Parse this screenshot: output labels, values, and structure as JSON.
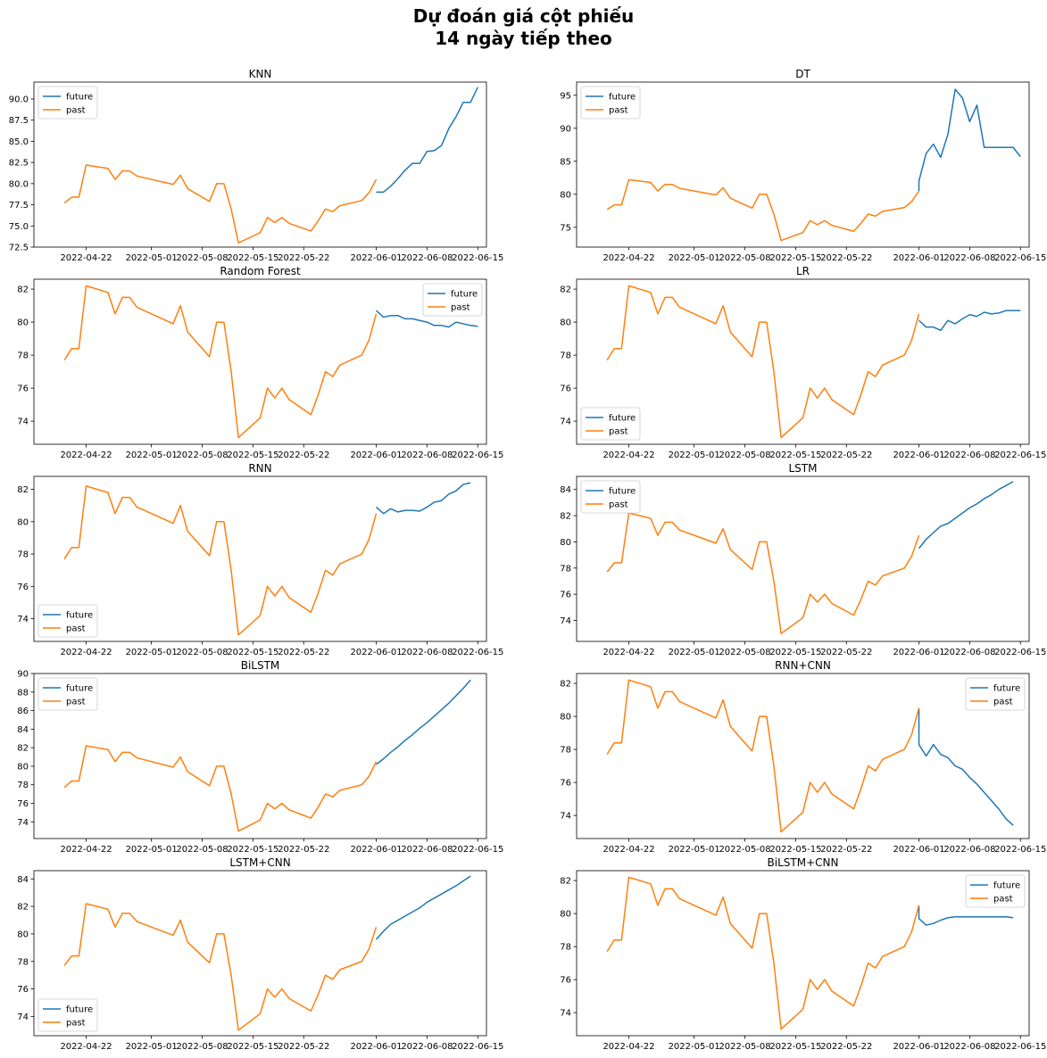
{
  "figure": {
    "title_line1": "Dự đoán giá cột phiếu",
    "title_line2": "14 ngày tiếp theo"
  },
  "legend_labels": {
    "future": "future",
    "past": "past"
  },
  "colors": {
    "future": "#1f77b4",
    "past": "#ff7f0e"
  },
  "chart_data": [
    {
      "type": "line",
      "title": "KNN",
      "xlabel": "",
      "ylabel": "",
      "xlim": [
        "2022-04-16",
        "2022-06-15"
      ],
      "ylim": [
        72.5,
        92.0
      ],
      "yticks": [
        72.5,
        75.0,
        77.5,
        80.0,
        82.5,
        85.0,
        87.5,
        90.0
      ],
      "ytick_decimals": 1,
      "xticks": [
        "2022-04-22",
        "2022-05-01",
        "2022-05-08",
        "2022-05-15",
        "2022-05-22",
        "2022-06-01",
        "2022-06-08",
        "2022-06-15"
      ],
      "legend": "upper-left",
      "future": [
        [
          "2022-06-01",
          79.0
        ],
        [
          "2022-06-02",
          79.0
        ],
        [
          "2022-06-03",
          79.7
        ],
        [
          "2022-06-04",
          80.6
        ],
        [
          "2022-06-05",
          81.6
        ],
        [
          "2022-06-06",
          82.4
        ],
        [
          "2022-06-07",
          82.4
        ],
        [
          "2022-06-08",
          83.8
        ],
        [
          "2022-06-09",
          83.9
        ],
        [
          "2022-06-10",
          84.5
        ],
        [
          "2022-06-11",
          86.5
        ],
        [
          "2022-06-12",
          87.9
        ],
        [
          "2022-06-13",
          89.6
        ],
        [
          "2022-06-14",
          89.6
        ],
        [
          "2022-06-15",
          91.4
        ]
      ]
    },
    {
      "type": "line",
      "title": "DT",
      "xlabel": "",
      "ylabel": "",
      "xlim": [
        "2022-04-16",
        "2022-06-15"
      ],
      "ylim": [
        72.0,
        97.0
      ],
      "yticks": [
        75,
        80,
        85,
        90,
        95
      ],
      "ytick_decimals": 0,
      "xticks": [
        "2022-04-22",
        "2022-05-01",
        "2022-05-08",
        "2022-05-15",
        "2022-05-22",
        "2022-06-01",
        "2022-06-08",
        "2022-06-15"
      ],
      "legend": "upper-left",
      "future": [
        [
          "2022-06-01",
          80.5
        ],
        [
          "2022-06-01",
          82.0
        ],
        [
          "2022-06-02",
          86.2
        ],
        [
          "2022-06-03",
          87.6
        ],
        [
          "2022-06-04",
          85.6
        ],
        [
          "2022-06-05",
          89.1
        ],
        [
          "2022-06-06",
          95.9
        ],
        [
          "2022-06-07",
          94.6
        ],
        [
          "2022-06-08",
          91.0
        ],
        [
          "2022-06-09",
          93.5
        ],
        [
          "2022-06-10",
          87.1
        ],
        [
          "2022-06-11",
          87.1
        ],
        [
          "2022-06-12",
          87.1
        ],
        [
          "2022-06-13",
          87.1
        ],
        [
          "2022-06-14",
          87.1
        ],
        [
          "2022-06-15",
          85.7
        ]
      ]
    },
    {
      "type": "line",
      "title": "Random Forest",
      "xlabel": "",
      "ylabel": "",
      "xlim": [
        "2022-04-16",
        "2022-06-15"
      ],
      "ylim": [
        72.6,
        82.6
      ],
      "yticks": [
        74,
        76,
        78,
        80,
        82
      ],
      "ytick_decimals": 0,
      "xticks": [
        "2022-04-22",
        "2022-05-01",
        "2022-05-08",
        "2022-05-15",
        "2022-05-22",
        "2022-06-01",
        "2022-06-08",
        "2022-06-15"
      ],
      "legend": "upper-right",
      "future": [
        [
          "2022-06-01",
          80.7
        ],
        [
          "2022-06-02",
          80.3
        ],
        [
          "2022-06-03",
          80.4
        ],
        [
          "2022-06-04",
          80.4
        ],
        [
          "2022-06-05",
          80.2
        ],
        [
          "2022-06-06",
          80.2
        ],
        [
          "2022-06-07",
          80.1
        ],
        [
          "2022-06-08",
          80.0
        ],
        [
          "2022-06-09",
          79.8
        ],
        [
          "2022-06-10",
          79.8
        ],
        [
          "2022-06-11",
          79.7
        ],
        [
          "2022-06-12",
          80.0
        ],
        [
          "2022-06-13",
          79.9
        ],
        [
          "2022-06-14",
          79.8
        ],
        [
          "2022-06-15",
          79.75
        ]
      ]
    },
    {
      "type": "line",
      "title": "LR",
      "xlabel": "",
      "ylabel": "",
      "xlim": [
        "2022-04-16",
        "2022-06-15"
      ],
      "ylim": [
        72.6,
        82.6
      ],
      "yticks": [
        74,
        76,
        78,
        80,
        82
      ],
      "ytick_decimals": 0,
      "xticks": [
        "2022-04-22",
        "2022-05-01",
        "2022-05-08",
        "2022-05-15",
        "2022-05-22",
        "2022-06-01",
        "2022-06-08",
        "2022-06-15"
      ],
      "legend": "lower-left",
      "future": [
        [
          "2022-06-01",
          80.1
        ],
        [
          "2022-06-02",
          79.7
        ],
        [
          "2022-06-03",
          79.7
        ],
        [
          "2022-06-04",
          79.5
        ],
        [
          "2022-06-05",
          80.1
        ],
        [
          "2022-06-06",
          79.9
        ],
        [
          "2022-06-07",
          80.2
        ],
        [
          "2022-06-08",
          80.45
        ],
        [
          "2022-06-09",
          80.35
        ],
        [
          "2022-06-10",
          80.6
        ],
        [
          "2022-06-11",
          80.5
        ],
        [
          "2022-06-12",
          80.55
        ],
        [
          "2022-06-13",
          80.7
        ],
        [
          "2022-06-14",
          80.7
        ],
        [
          "2022-06-15",
          80.7
        ]
      ]
    },
    {
      "type": "line",
      "title": "RNN",
      "xlabel": "",
      "ylabel": "",
      "xlim": [
        "2022-04-16",
        "2022-06-15"
      ],
      "ylim": [
        72.6,
        82.8
      ],
      "yticks": [
        74,
        76,
        78,
        80,
        82
      ],
      "ytick_decimals": 0,
      "xticks": [
        "2022-04-22",
        "2022-05-01",
        "2022-05-08",
        "2022-05-15",
        "2022-05-22",
        "2022-06-01",
        "2022-06-08",
        "2022-06-15"
      ],
      "legend": "lower-left",
      "future": [
        [
          "2022-06-01",
          80.9
        ],
        [
          "2022-06-02",
          80.5
        ],
        [
          "2022-06-03",
          80.8
        ],
        [
          "2022-06-04",
          80.6
        ],
        [
          "2022-06-05",
          80.7
        ],
        [
          "2022-06-06",
          80.7
        ],
        [
          "2022-06-07",
          80.65
        ],
        [
          "2022-06-08",
          80.9
        ],
        [
          "2022-06-09",
          81.2
        ],
        [
          "2022-06-10",
          81.3
        ],
        [
          "2022-06-11",
          81.7
        ],
        [
          "2022-06-12",
          81.9
        ],
        [
          "2022-06-13",
          82.3
        ],
        [
          "2022-06-14",
          82.4
        ]
      ]
    },
    {
      "type": "line",
      "title": "LSTM",
      "xlabel": "",
      "ylabel": "",
      "xlim": [
        "2022-04-16",
        "2022-06-15"
      ],
      "ylim": [
        72.4,
        85.0
      ],
      "yticks": [
        74,
        76,
        78,
        80,
        82,
        84
      ],
      "ytick_decimals": 0,
      "xticks": [
        "2022-04-22",
        "2022-05-01",
        "2022-05-08",
        "2022-05-15",
        "2022-05-22",
        "2022-06-01",
        "2022-06-08",
        "2022-06-15"
      ],
      "legend": "upper-left",
      "future": [
        [
          "2022-06-01",
          79.5
        ],
        [
          "2022-06-02",
          80.2
        ],
        [
          "2022-06-03",
          80.7
        ],
        [
          "2022-06-04",
          81.2
        ],
        [
          "2022-06-05",
          81.4
        ],
        [
          "2022-06-06",
          81.8
        ],
        [
          "2022-06-07",
          82.2
        ],
        [
          "2022-06-08",
          82.6
        ],
        [
          "2022-06-09",
          82.9
        ],
        [
          "2022-06-10",
          83.3
        ],
        [
          "2022-06-11",
          83.6
        ],
        [
          "2022-06-12",
          84.0
        ],
        [
          "2022-06-13",
          84.3
        ],
        [
          "2022-06-14",
          84.6
        ]
      ]
    },
    {
      "type": "line",
      "title": "BiLSTM",
      "xlabel": "",
      "ylabel": "",
      "xlim": [
        "2022-04-16",
        "2022-06-15"
      ],
      "ylim": [
        72.2,
        90.0
      ],
      "yticks": [
        74,
        76,
        78,
        80,
        82,
        84,
        86,
        88,
        90
      ],
      "ytick_decimals": 0,
      "xticks": [
        "2022-04-22",
        "2022-05-01",
        "2022-05-08",
        "2022-05-15",
        "2022-05-22",
        "2022-06-01",
        "2022-06-08",
        "2022-06-15"
      ],
      "legend": "upper-left",
      "future": [
        [
          "2022-06-01",
          80.2
        ],
        [
          "2022-06-02",
          80.8
        ],
        [
          "2022-06-03",
          81.5
        ],
        [
          "2022-06-04",
          82.1
        ],
        [
          "2022-06-05",
          82.8
        ],
        [
          "2022-06-06",
          83.4
        ],
        [
          "2022-06-07",
          84.1
        ],
        [
          "2022-06-08",
          84.7
        ],
        [
          "2022-06-09",
          85.4
        ],
        [
          "2022-06-10",
          86.1
        ],
        [
          "2022-06-11",
          86.8
        ],
        [
          "2022-06-12",
          87.6
        ],
        [
          "2022-06-13",
          88.4
        ],
        [
          "2022-06-14",
          89.3
        ]
      ]
    },
    {
      "type": "line",
      "title": "RNN+CNN",
      "xlabel": "",
      "ylabel": "",
      "xlim": [
        "2022-04-16",
        "2022-06-15"
      ],
      "ylim": [
        72.6,
        82.6
      ],
      "yticks": [
        74,
        76,
        78,
        80,
        82
      ],
      "ytick_decimals": 0,
      "xticks": [
        "2022-04-22",
        "2022-05-01",
        "2022-05-08",
        "2022-05-15",
        "2022-05-22",
        "2022-06-01",
        "2022-06-08",
        "2022-06-15"
      ],
      "legend": "upper-right",
      "future": [
        [
          "2022-06-01",
          80.5
        ],
        [
          "2022-06-01",
          78.3
        ],
        [
          "2022-06-02",
          77.6
        ],
        [
          "2022-06-03",
          78.3
        ],
        [
          "2022-06-04",
          77.7
        ],
        [
          "2022-06-05",
          77.5
        ],
        [
          "2022-06-06",
          77.0
        ],
        [
          "2022-06-07",
          76.8
        ],
        [
          "2022-06-08",
          76.3
        ],
        [
          "2022-06-09",
          75.9
        ],
        [
          "2022-06-10",
          75.4
        ],
        [
          "2022-06-11",
          74.9
        ],
        [
          "2022-06-12",
          74.4
        ],
        [
          "2022-06-13",
          73.8
        ],
        [
          "2022-06-14",
          73.4
        ]
      ]
    },
    {
      "type": "line",
      "title": "LSTM+CNN",
      "xlabel": "",
      "ylabel": "",
      "xlim": [
        "2022-04-16",
        "2022-06-15"
      ],
      "ylim": [
        72.6,
        84.6
      ],
      "yticks": [
        74,
        76,
        78,
        80,
        82,
        84
      ],
      "ytick_decimals": 0,
      "xticks": [
        "2022-04-22",
        "2022-05-01",
        "2022-05-08",
        "2022-05-15",
        "2022-05-22",
        "2022-06-01",
        "2022-06-08",
        "2022-06-15"
      ],
      "legend": "lower-left",
      "future": [
        [
          "2022-06-01",
          79.6
        ],
        [
          "2022-06-02",
          80.2
        ],
        [
          "2022-06-03",
          80.7
        ],
        [
          "2022-06-04",
          81.0
        ],
        [
          "2022-06-05",
          81.3
        ],
        [
          "2022-06-06",
          81.6
        ],
        [
          "2022-06-07",
          81.9
        ],
        [
          "2022-06-08",
          82.3
        ],
        [
          "2022-06-09",
          82.6
        ],
        [
          "2022-06-10",
          82.9
        ],
        [
          "2022-06-11",
          83.2
        ],
        [
          "2022-06-12",
          83.5
        ],
        [
          "2022-06-13",
          83.85
        ],
        [
          "2022-06-14",
          84.2
        ]
      ]
    },
    {
      "type": "line",
      "title": "BiLSTM+CNN",
      "xlabel": "",
      "ylabel": "",
      "xlim": [
        "2022-04-16",
        "2022-06-15"
      ],
      "ylim": [
        72.6,
        82.6
      ],
      "yticks": [
        74,
        76,
        78,
        80,
        82
      ],
      "ytick_decimals": 0,
      "xticks": [
        "2022-04-22",
        "2022-05-01",
        "2022-05-08",
        "2022-05-15",
        "2022-05-22",
        "2022-06-01",
        "2022-06-08",
        "2022-06-15"
      ],
      "legend": "upper-right",
      "future": [
        [
          "2022-06-01",
          80.5
        ],
        [
          "2022-06-01",
          79.7
        ],
        [
          "2022-06-02",
          79.3
        ],
        [
          "2022-06-03",
          79.4
        ],
        [
          "2022-06-04",
          79.6
        ],
        [
          "2022-06-05",
          79.75
        ],
        [
          "2022-06-06",
          79.8
        ],
        [
          "2022-06-07",
          79.8
        ],
        [
          "2022-06-08",
          79.8
        ],
        [
          "2022-06-09",
          79.8
        ],
        [
          "2022-06-10",
          79.8
        ],
        [
          "2022-06-11",
          79.8
        ],
        [
          "2022-06-12",
          79.8
        ],
        [
          "2022-06-13",
          79.8
        ],
        [
          "2022-06-14",
          79.75
        ]
      ]
    }
  ],
  "past_series": [
    [
      "2022-04-19",
      77.7
    ],
    [
      "2022-04-20",
      78.4
    ],
    [
      "2022-04-21",
      78.4
    ],
    [
      "2022-04-22",
      82.2
    ],
    [
      "2022-04-25",
      81.8
    ],
    [
      "2022-04-26",
      80.5
    ],
    [
      "2022-04-27",
      81.5
    ],
    [
      "2022-04-28",
      81.5
    ],
    [
      "2022-04-29",
      80.9
    ],
    [
      "2022-05-04",
      79.9
    ],
    [
      "2022-05-05",
      81.0
    ],
    [
      "2022-05-06",
      79.4
    ],
    [
      "2022-05-09",
      77.9
    ],
    [
      "2022-05-10",
      80.0
    ],
    [
      "2022-05-11",
      80.0
    ],
    [
      "2022-05-12",
      77.0
    ],
    [
      "2022-05-13",
      73.0
    ],
    [
      "2022-05-16",
      74.2
    ],
    [
      "2022-05-17",
      76.0
    ],
    [
      "2022-05-18",
      75.4
    ],
    [
      "2022-05-19",
      76.0
    ],
    [
      "2022-05-20",
      75.3
    ],
    [
      "2022-05-23",
      74.4
    ],
    [
      "2022-05-24",
      75.6
    ],
    [
      "2022-05-25",
      77.0
    ],
    [
      "2022-05-26",
      76.7
    ],
    [
      "2022-05-27",
      77.4
    ],
    [
      "2022-05-30",
      78.0
    ],
    [
      "2022-05-31",
      78.9
    ],
    [
      "2022-06-01",
      80.5
    ]
  ]
}
